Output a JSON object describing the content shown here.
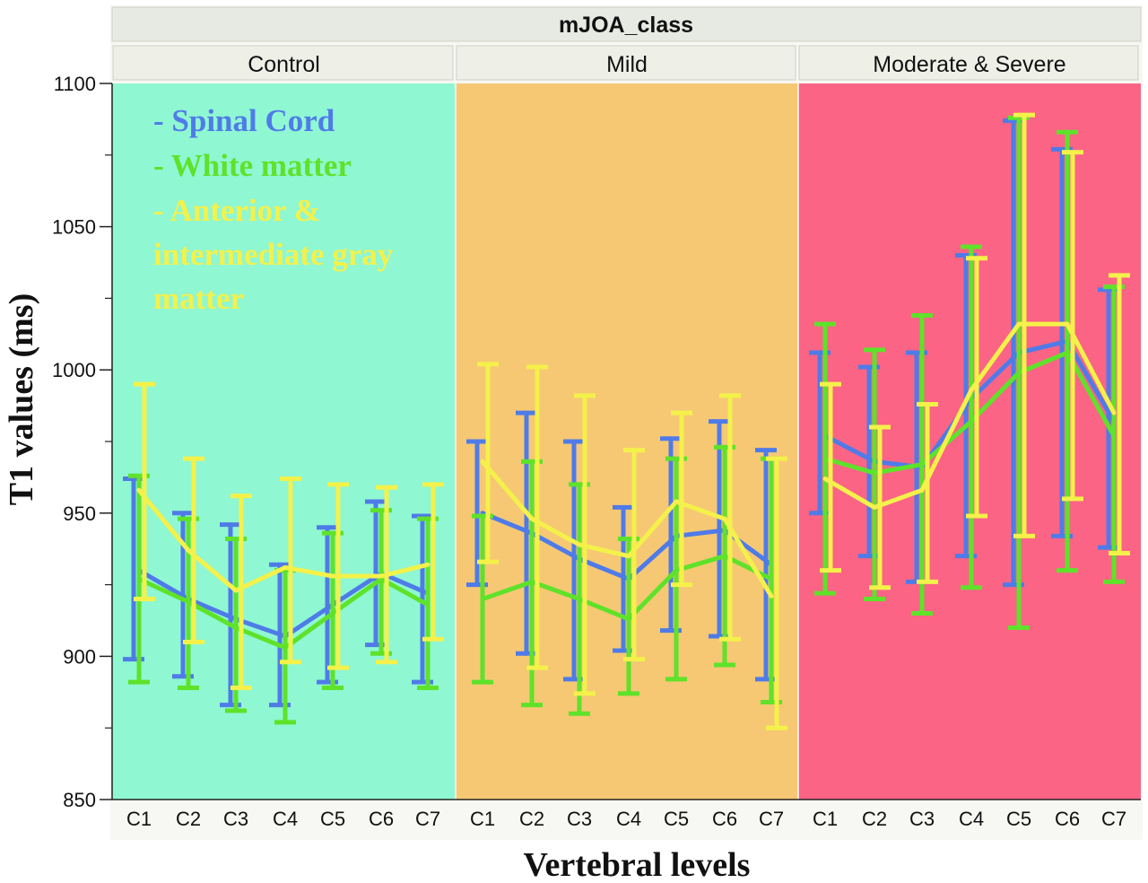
{
  "chart_data": {
    "type": "line",
    "title": "mJOA_class",
    "xlabel": "Vertebral levels",
    "ylabel": "T1 values (ms)",
    "ylim": [
      850,
      1100
    ],
    "yticks": [
      850,
      900,
      950,
      1000,
      1050,
      1100
    ],
    "categories": [
      "C1",
      "C2",
      "C3",
      "C4",
      "C5",
      "C6",
      "C7"
    ],
    "grid": false,
    "legend_placement": "top-left",
    "legend": [
      {
        "label": "- Spinal Cord",
        "color": "#4f7be8"
      },
      {
        "label": "- White matter",
        "color": "#5ee22a"
      },
      {
        "label": "- Anterior & intermediate gray matter",
        "color": "#f4f14a"
      }
    ],
    "panels": [
      {
        "name": "Control",
        "background": "#8ff7d2",
        "series": [
          {
            "name": "Spinal Cord",
            "color": "#4f7be8",
            "values": [
              930,
              920,
              913,
              907,
              918,
              929,
              922
            ],
            "lower": [
              899,
              893,
              883,
              883,
              891,
              904,
              891
            ],
            "upper": [
              962,
              950,
              946,
              932,
              945,
              954,
              949
            ]
          },
          {
            "name": "White matter",
            "color": "#5ee22a",
            "values": [
              927,
              919,
              910,
              903,
              915,
              927,
              918
            ],
            "lower": [
              891,
              889,
              881,
              877,
              889,
              901,
              889
            ],
            "upper": [
              963,
              948,
              941,
              930,
              943,
              951,
              948
            ]
          },
          {
            "name": "Anterior & intermediate gray matter",
            "color": "#f4f14a",
            "values": [
              958,
              937,
              923,
              931,
              928,
              928,
              932
            ],
            "lower": [
              920,
              905,
              889,
              898,
              896,
              898,
              906
            ],
            "upper": [
              995,
              969,
              956,
              962,
              960,
              959,
              960
            ]
          }
        ]
      },
      {
        "name": "Mild",
        "background": "#f6c874",
        "series": [
          {
            "name": "Spinal Cord",
            "color": "#4f7be8",
            "values": [
              950,
              943,
              934,
              927,
              942,
              944,
              932
            ],
            "lower": [
              925,
              901,
              892,
              902,
              909,
              907,
              892
            ],
            "upper": [
              975,
              985,
              975,
              952,
              976,
              982,
              972
            ]
          },
          {
            "name": "White matter",
            "color": "#5ee22a",
            "values": [
              920,
              926,
              920,
              913,
              930,
              935,
              927
            ],
            "lower": [
              891,
              883,
              880,
              887,
              892,
              897,
              884
            ],
            "upper": [
              949,
              968,
              960,
              941,
              969,
              973,
              969
            ]
          },
          {
            "name": "Anterior & intermediate gray matter",
            "color": "#f4f14a",
            "values": [
              968,
              948,
              939,
              935,
              954,
              948,
              921
            ],
            "lower": [
              933,
              896,
              887,
              899,
              925,
              906,
              875
            ],
            "upper": [
              1002,
              1001,
              991,
              972,
              985,
              991,
              969
            ]
          }
        ]
      },
      {
        "name": "Moderate & Severe",
        "background": "#fb6485",
        "series": [
          {
            "name": "Spinal Cord",
            "color": "#4f7be8",
            "values": [
              977,
              968,
              966,
              990,
              1006,
              1010,
              982
            ],
            "lower": [
              950,
              935,
              926,
              935,
              925,
              942,
              938
            ],
            "upper": [
              1006,
              1001,
              1006,
              1040,
              1087,
              1077,
              1028
            ]
          },
          {
            "name": "White matter",
            "color": "#5ee22a",
            "values": [
              969,
              964,
              967,
              982,
              999,
              1006,
              977
            ],
            "lower": [
              922,
              920,
              915,
              924,
              910,
              930,
              926
            ],
            "upper": [
              1016,
              1007,
              1019,
              1043,
              1088,
              1083,
              1029
            ]
          },
          {
            "name": "Anterior & intermediate gray matter",
            "color": "#f4f14a",
            "values": [
              962,
              952,
              958,
              993,
              1016,
              1016,
              985
            ],
            "lower": [
              930,
              924,
              926,
              949,
              942,
              955,
              936
            ],
            "upper": [
              995,
              980,
              988,
              1039,
              1089,
              1076,
              1033
            ]
          }
        ]
      }
    ]
  }
}
